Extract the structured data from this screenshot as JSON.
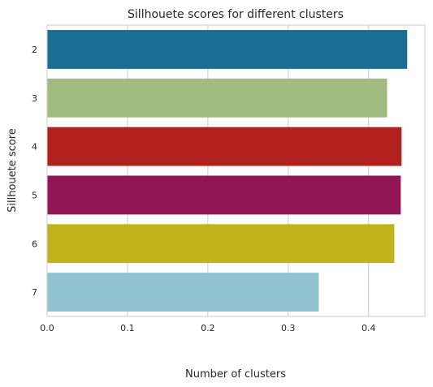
{
  "chart_data": {
    "type": "bar",
    "orientation": "horizontal",
    "title": "Sillhouete scores for different clusters",
    "xlabel": "Number of clusters",
    "ylabel": "Sillhouete score",
    "xlim": [
      0,
      0.47
    ],
    "xticks": [
      "0.0",
      "0.1",
      "0.2",
      "0.3",
      "0.4"
    ],
    "grid": true,
    "categories": [
      "2",
      "3",
      "4",
      "5",
      "6",
      "7"
    ],
    "values": [
      0.448,
      0.423,
      0.441,
      0.44,
      0.432,
      0.338
    ],
    "colors": [
      "#1a6e94",
      "#a1bb80",
      "#b2211d",
      "#921556",
      "#c1b31b",
      "#92c3d1"
    ]
  }
}
